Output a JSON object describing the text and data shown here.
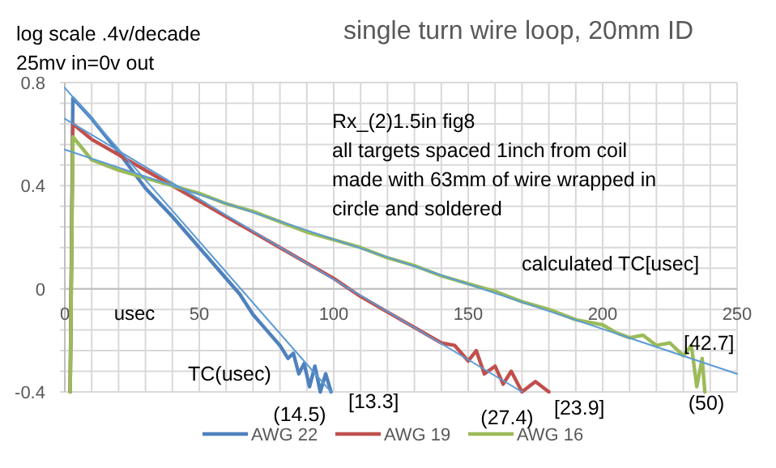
{
  "chart_data": {
    "type": "line",
    "title": "single turn wire loop, 20mm ID",
    "xlabel": "usec",
    "xlim": [
      0,
      250
    ],
    "ylim": [
      -0.4,
      0.8
    ],
    "xticks": [
      0,
      {
        "value": 10,
        "label": null
      },
      {
        "value": 20,
        "label": null
      },
      {
        "value": 30,
        "label": null
      },
      {
        "value": 40,
        "label": null
      },
      50,
      {
        "value": 60,
        "label": null
      },
      {
        "value": 70,
        "label": null
      },
      {
        "value": 80,
        "label": null
      },
      {
        "value": 90,
        "label": null
      },
      100,
      {
        "value": 110,
        "label": null
      },
      {
        "value": 120,
        "label": null
      },
      {
        "value": 130,
        "label": null
      },
      {
        "value": 140,
        "label": null
      },
      150,
      {
        "value": 160,
        "label": null
      },
      {
        "value": 170,
        "label": null
      },
      {
        "value": 180,
        "label": null
      },
      {
        "value": 190,
        "label": null
      },
      200,
      {
        "value": 210,
        "label": null
      },
      {
        "value": 220,
        "label": null
      },
      {
        "value": 230,
        "label": null
      },
      {
        "value": 240,
        "label": null
      },
      250
    ],
    "yticks": [
      {
        "value": -0.4,
        "label": "-0.4"
      },
      {
        "value": -0.32,
        "label": null
      },
      {
        "value": -0.24,
        "label": null
      },
      {
        "value": -0.16,
        "label": null
      },
      {
        "value": -0.08,
        "label": null
      },
      0,
      {
        "value": 0.08,
        "label": null
      },
      {
        "value": 0.16,
        "label": null
      },
      {
        "value": 0.24,
        "label": null
      },
      {
        "value": 0.32,
        "label": null
      },
      0.4,
      {
        "value": 0.48,
        "label": null
      },
      {
        "value": 0.56,
        "label": null
      },
      {
        "value": 0.64,
        "label": null
      },
      {
        "value": 0.72,
        "label": null
      },
      0.8
    ],
    "grid": true,
    "legend": "bottom",
    "series": [
      {
        "name": "AWG 22",
        "color": "#4f81bd",
        "x": [
          2,
          3,
          10,
          20,
          30,
          40,
          50,
          60,
          65,
          70,
          75,
          80,
          83,
          85,
          87,
          89,
          91,
          93,
          95,
          97,
          99
        ],
        "values": [
          -0.4,
          0.74,
          0.66,
          0.53,
          0.39,
          0.28,
          0.16,
          0.04,
          -0.02,
          -0.1,
          -0.16,
          -0.22,
          -0.27,
          -0.25,
          -0.33,
          -0.29,
          -0.38,
          -0.3,
          -0.4,
          -0.33,
          -0.4
        ]
      },
      {
        "name": "AWG 19",
        "color": "#c0504d",
        "x": [
          2,
          3,
          10,
          20,
          30,
          40,
          50,
          60,
          70,
          80,
          90,
          100,
          110,
          120,
          130,
          140,
          145,
          150,
          153,
          156,
          160,
          163,
          166,
          170,
          175,
          180
        ],
        "values": [
          -0.4,
          0.64,
          0.58,
          0.52,
          0.46,
          0.4,
          0.34,
          0.28,
          0.22,
          0.16,
          0.1,
          0.04,
          -0.03,
          -0.09,
          -0.15,
          -0.21,
          -0.22,
          -0.28,
          -0.24,
          -0.33,
          -0.3,
          -0.37,
          -0.32,
          -0.4,
          -0.36,
          -0.4
        ]
      },
      {
        "name": "AWG 16",
        "color": "#9bbb59",
        "x": [
          2,
          3,
          10,
          20,
          30,
          40,
          50,
          60,
          70,
          80,
          90,
          100,
          110,
          120,
          130,
          140,
          150,
          160,
          170,
          180,
          190,
          200,
          205,
          210,
          215,
          220,
          225,
          230,
          233,
          235,
          237,
          238
        ],
        "values": [
          -0.4,
          0.59,
          0.5,
          0.46,
          0.43,
          0.4,
          0.37,
          0.33,
          0.3,
          0.26,
          0.22,
          0.19,
          0.16,
          0.12,
          0.09,
          0.05,
          0.02,
          -0.01,
          -0.05,
          -0.08,
          -0.12,
          -0.14,
          -0.17,
          -0.19,
          -0.18,
          -0.22,
          -0.21,
          -0.26,
          -0.22,
          -0.38,
          -0.27,
          -0.4
        ]
      },
      {
        "type": "line",
        "color": "#5b9bd5",
        "x": [
          0,
          99
        ],
        "values": [
          0.78,
          -0.4
        ]
      },
      {
        "type": "line",
        "color": "#5b9bd5",
        "x": [
          0,
          170
        ],
        "values": [
          0.66,
          -0.4
        ]
      },
      {
        "type": "line",
        "color": "#5b9bd5",
        "x": [
          0,
          250
        ],
        "values": [
          0.54,
          -0.33
        ]
      }
    ],
    "annotations": [
      "log scale .4v/decade",
      "25mv in=0v out",
      "Rx_(2)1.5in fig8\nall targets spaced 1inch from coil\nmade with 63mm of wire wrapped in\ncircle and soldered",
      "calculated TC[usec]",
      "TC(usec)",
      "(14.5)",
      "[13.3]",
      "(27.4)",
      "[23.9]",
      "[42.7]",
      "(50)"
    ]
  }
}
